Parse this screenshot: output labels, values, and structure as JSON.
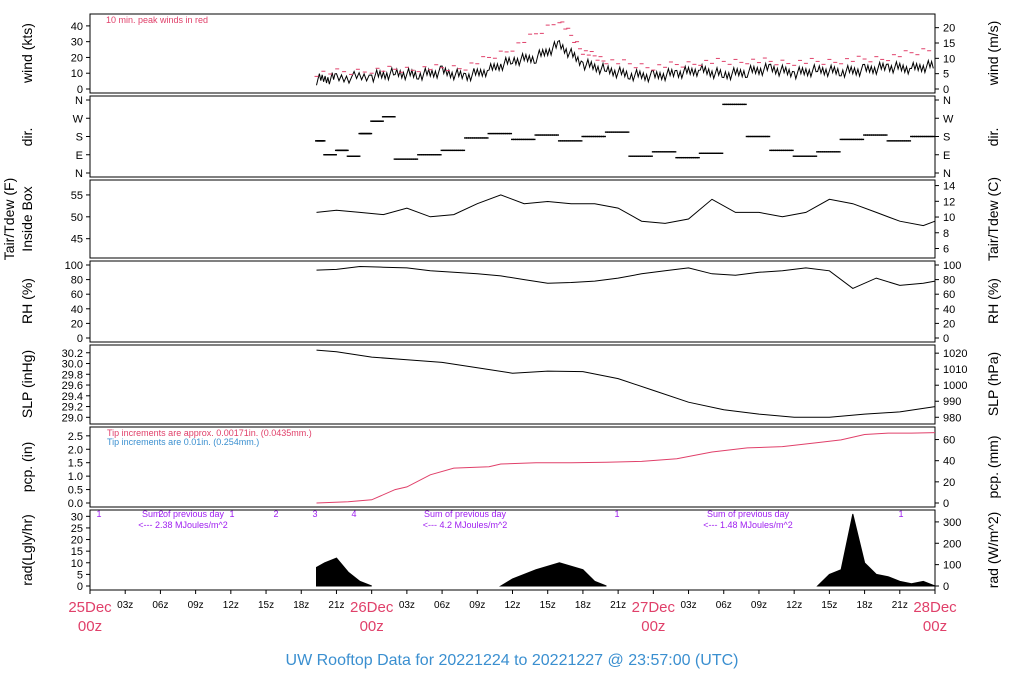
{
  "footer": "UW Rooftop Data for 20221224  to  20221227 @ 23:57:00  (UTC)",
  "colors": {
    "red": "#e0406a",
    "blue": "#3a8fd0",
    "purple": "#a020f0",
    "black": "#000000"
  },
  "x_axis": {
    "hour_labels": [
      "03z",
      "06z",
      "09z",
      "12z",
      "15z",
      "18z",
      "21z",
      "03z",
      "06z",
      "09z",
      "12z",
      "15z",
      "18z",
      "21z",
      "03z",
      "06z",
      "09z",
      "12z",
      "15z",
      "18z",
      "21z"
    ],
    "day_labels": [
      {
        "day": "25Dec",
        "time": "00z"
      },
      {
        "day": "26Dec",
        "time": "00z"
      },
      {
        "day": "27Dec",
        "time": "00z"
      },
      {
        "day": "28Dec",
        "time": "00z"
      }
    ]
  },
  "panels": {
    "wind": {
      "left_label": "wind (kts)",
      "right_label": "wind (m/s)",
      "left_ticks": [
        "0",
        "10",
        "20",
        "30",
        "40"
      ],
      "right_ticks": [
        "0",
        "5",
        "10",
        "15",
        "20"
      ],
      "note": "10 min. peak winds in red"
    },
    "dir": {
      "left_label": "dir.",
      "right_label": "dir.",
      "ticks": [
        "N",
        "E",
        "S",
        "W",
        "N"
      ]
    },
    "temp": {
      "left_label_1": "Tair/Tdew (F)",
      "left_label_2": "Inside Box",
      "right_label": "Tair/Tdew (C)",
      "left_ticks": [
        "45",
        "50",
        "55"
      ],
      "right_ticks": [
        "6",
        "8",
        "10",
        "12",
        "14"
      ]
    },
    "rh": {
      "left_label": "RH (%)",
      "right_label": "RH (%)",
      "ticks": [
        "0",
        "20",
        "40",
        "60",
        "80",
        "100"
      ]
    },
    "slp": {
      "left_label": "SLP (inHg)",
      "right_label": "SLP (hPa)",
      "left_ticks": [
        "29.0",
        "29.2",
        "29.4",
        "29.6",
        "29.8",
        "30.0",
        "30.2"
      ],
      "right_ticks": [
        "980",
        "990",
        "1000",
        "1010",
        "1020"
      ]
    },
    "pcp": {
      "left_label": "pcp. (in)",
      "right_label": "pcp. (mm)",
      "left_ticks": [
        "0.0",
        "0.5",
        "1.0",
        "1.5",
        "2.0",
        "2.5"
      ],
      "right_ticks": [
        "0",
        "20",
        "40",
        "60"
      ],
      "note_red": "Tip increments are approx. 0.00171in. (0.0435mm.)",
      "note_blue": "Tip increments are 0.01in. (0.254mm.)"
    },
    "rad": {
      "left_label": "rad(Lgly/hr)",
      "right_label": "rad (W/m^2)",
      "left_ticks": [
        "0",
        "5",
        "10",
        "15",
        "20",
        "25",
        "30"
      ],
      "right_ticks": [
        "0",
        "100",
        "200",
        "300"
      ],
      "sum_title": "Sum of previous day",
      "sums": [
        "<--- 2.38 MJoules/m^2",
        "<--- 4.2 MJoules/m^2",
        "<--- 1.48 MJoules/m^2"
      ],
      "marker_labels": [
        "1",
        "2",
        "1",
        "2",
        "3",
        "4",
        "1",
        "1"
      ]
    }
  },
  "chart_data": {
    "type": "line",
    "x_unit": "hours since 25Dec 00z",
    "x_range": [
      0,
      72
    ],
    "data_start_hour": 19.3,
    "series": [
      {
        "name": "wind",
        "unit": "kts",
        "x": [
          19.3,
          21,
          24,
          26,
          28,
          30,
          32,
          34,
          36,
          38,
          40,
          42,
          44,
          46,
          48,
          50,
          52,
          54,
          56,
          58,
          60,
          62,
          64,
          66,
          68,
          70,
          72
        ],
        "y": [
          6,
          7,
          8,
          10,
          9,
          11,
          8,
          12,
          18,
          20,
          28,
          16,
          12,
          9,
          8,
          10,
          12,
          9,
          11,
          13,
          10,
          12,
          11,
          12,
          14,
          13,
          15
        ]
      },
      {
        "name": "peak wind",
        "unit": "kts",
        "x": [
          19.3,
          24,
          28,
          32,
          36,
          40,
          42,
          44,
          48,
          52,
          56,
          60,
          64,
          68,
          72
        ],
        "y": [
          10,
          12,
          13,
          14,
          26,
          44,
          24,
          18,
          14,
          17,
          18,
          17,
          18,
          20,
          26
        ]
      },
      {
        "name": "dir",
        "unit": "compass",
        "x": [
          19.3,
          20,
          21,
          22,
          23,
          24,
          25,
          26,
          28,
          30,
          32,
          34,
          36,
          38,
          40,
          42,
          44,
          46,
          48,
          50,
          52,
          54,
          56,
          58,
          60,
          62,
          64,
          66,
          68,
          70,
          72
        ],
        "y": [
          "S",
          "E",
          "E",
          "E",
          "S",
          "W",
          "W",
          "E",
          "E",
          "E",
          "S",
          "S",
          "S",
          "S",
          "S",
          "S",
          "S",
          "E",
          "E",
          "E",
          "E",
          "N",
          "S",
          "E",
          "E",
          "E",
          "S",
          "S",
          "S",
          "S",
          "S"
        ]
      },
      {
        "name": "Tair",
        "unit": "F",
        "x": [
          19.3,
          21,
          23,
          25,
          27,
          29,
          31,
          33,
          35,
          37,
          39,
          41,
          43,
          45,
          47,
          49,
          51,
          53,
          55,
          57,
          59,
          61,
          63,
          65,
          67,
          69,
          71,
          72
        ],
        "y": [
          51,
          51.5,
          51,
          50.5,
          52,
          50,
          50.5,
          53,
          55,
          53,
          53.5,
          53,
          53,
          52,
          49,
          48.5,
          49.5,
          54,
          51,
          51,
          50,
          51,
          54,
          53,
          51,
          49,
          48,
          49
        ]
      },
      {
        "name": "RH",
        "unit": "%",
        "x": [
          19.3,
          21,
          23,
          25,
          27,
          29,
          31,
          33,
          35,
          37,
          39,
          41,
          43,
          45,
          47,
          49,
          51,
          53,
          55,
          57,
          59,
          61,
          63,
          65,
          67,
          69,
          71,
          72
        ],
        "y": [
          93,
          94,
          98,
          97,
          96,
          92,
          90,
          88,
          85,
          80,
          75,
          76,
          78,
          82,
          88,
          92,
          96,
          88,
          86,
          90,
          92,
          96,
          92,
          68,
          82,
          72,
          75,
          78
        ]
      },
      {
        "name": "SLP",
        "unit": "inHg",
        "x": [
          19.3,
          21,
          24,
          27,
          30,
          33,
          36,
          39,
          42,
          45,
          48,
          51,
          54,
          57,
          60,
          63,
          66,
          69,
          72
        ],
        "y": [
          30.25,
          30.22,
          30.12,
          30.07,
          30.02,
          29.92,
          29.82,
          29.86,
          29.85,
          29.72,
          29.5,
          29.28,
          29.14,
          29.06,
          29.0,
          29.0,
          29.06,
          29.1,
          29.2
        ]
      },
      {
        "name": "pcp",
        "unit": "in",
        "x": [
          19.3,
          22,
          24,
          26,
          27,
          29,
          31,
          34,
          35,
          38,
          41,
          44,
          47,
          50,
          53,
          56,
          59,
          62,
          64,
          66,
          68,
          70,
          72
        ],
        "y": [
          0,
          0.05,
          0.12,
          0.5,
          0.6,
          1.05,
          1.3,
          1.35,
          1.45,
          1.5,
          1.5,
          1.52,
          1.55,
          1.65,
          1.9,
          2.05,
          2.1,
          2.25,
          2.35,
          2.55,
          2.6,
          2.6,
          2.62
        ]
      },
      {
        "name": "rad",
        "unit": "Lgly/hr",
        "x": [
          19.3,
          20,
          21,
          22,
          23,
          24,
          35,
          36,
          38,
          40,
          42,
          43,
          44,
          62,
          63,
          64,
          65,
          66,
          67,
          68,
          69,
          70,
          71,
          72
        ],
        "y": [
          8,
          10,
          12,
          6,
          2,
          0,
          0,
          3,
          7,
          10,
          7,
          2,
          0,
          0,
          5,
          7,
          31,
          10,
          5,
          4,
          2,
          1,
          2,
          0
        ]
      }
    ]
  }
}
